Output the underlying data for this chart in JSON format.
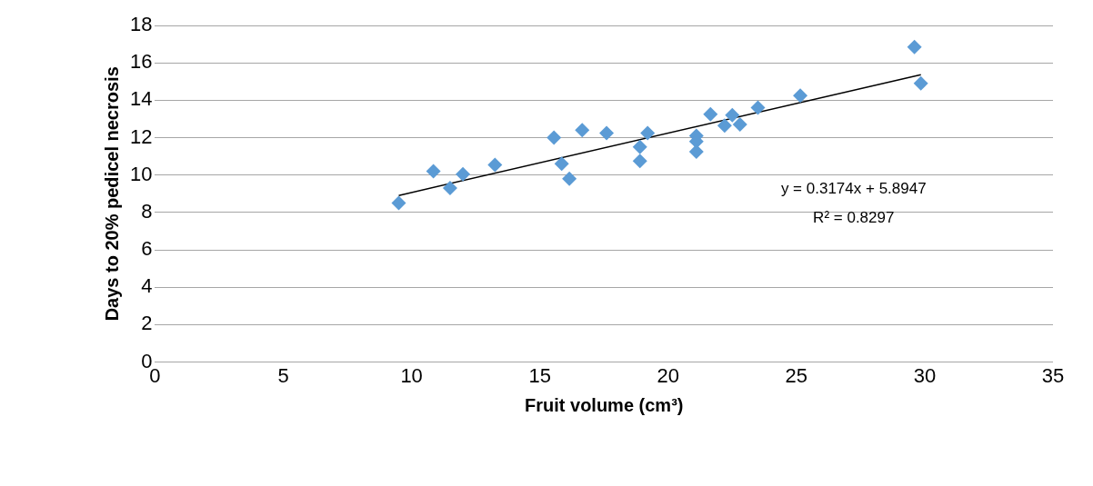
{
  "chart_data": {
    "type": "scatter",
    "xlabel": "Fruit volume (cm³)",
    "ylabel": "Days to 20% pedicel necrosis",
    "xlim": [
      0,
      35
    ],
    "xticks": [
      0,
      5,
      10,
      15,
      20,
      25,
      30,
      35
    ],
    "ylim": [
      0,
      18
    ],
    "yticks": [
      0,
      2,
      4,
      6,
      8,
      10,
      12,
      14,
      16,
      18
    ],
    "grid": "y",
    "legend": false,
    "marker": "diamond",
    "series": [
      {
        "type": "scatter",
        "color": "#5b9bd5",
        "x": [
          9.5,
          10.85,
          11.5,
          12.0,
          13.25,
          15.55,
          15.85,
          16.15,
          16.65,
          17.6,
          18.9,
          18.9,
          19.2,
          21.1,
          21.1,
          21.1,
          21.65,
          22.2,
          22.5,
          22.8,
          23.5,
          25.15,
          29.6,
          29.85
        ],
        "values": [
          8.5,
          10.2,
          9.3,
          10.05,
          10.55,
          12.0,
          10.6,
          9.8,
          12.4,
          12.25,
          11.5,
          10.75,
          12.25,
          12.1,
          11.8,
          11.25,
          13.25,
          12.65,
          13.2,
          12.7,
          13.6,
          14.25,
          16.85,
          14.9
        ]
      },
      {
        "type": "line",
        "color": "#000000",
        "marker": "none",
        "x": [
          9.5,
          29.85
        ],
        "values": [
          8.91,
          15.37
        ]
      }
    ],
    "annotations": [
      "y = 0.3174x + 5.8947",
      "R² = 0.8297"
    ]
  }
}
